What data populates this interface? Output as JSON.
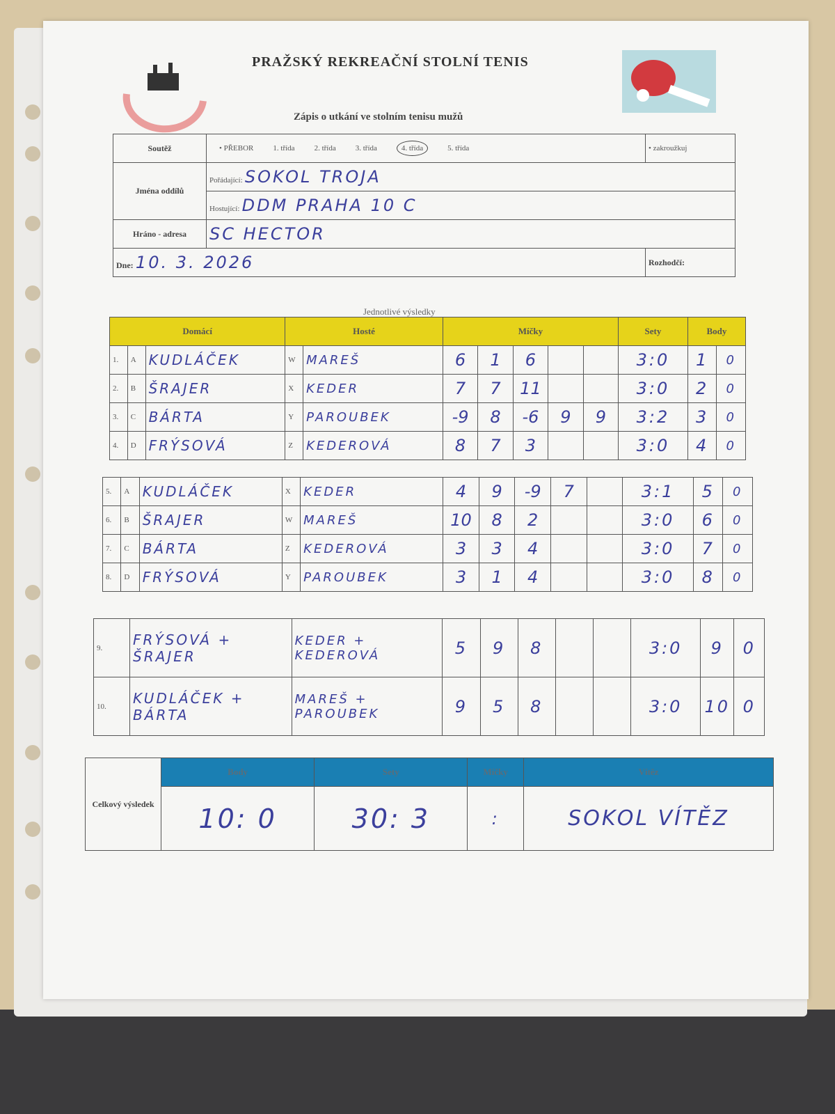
{
  "header": {
    "title": "PRAŽSKÝ REKREAČNÍ STOLNÍ TENIS",
    "subtitle": "Zápis o utkání ve stolním tenisu mužů"
  },
  "info": {
    "soutez_label": "Soutěž",
    "soutez_options": [
      "• PŘEBOR",
      "1. třída",
      "2. třída",
      "3. třída",
      "4. třída",
      "5. třída"
    ],
    "soutez_selected": "4. třída",
    "zakrouzkuj": "• zakroužkuj",
    "jmena_label": "Jména oddílů",
    "poradajici_label": "Pořádající:",
    "poradajici": "SOKOL TROJA",
    "hostujici_label": "Hostující:",
    "hostujici": "DDM PRAHA 10 C",
    "adresa_label": "Hráno - adresa",
    "adresa": "SC HECTOR",
    "dne_label": "Dne:",
    "dne": "10. 3. 2026",
    "rozhodci_label": "Rozhodčí:"
  },
  "results": {
    "caption": "Jednotlivé výsledky",
    "headers": {
      "domaci": "Domácí",
      "hoste": "Hosté",
      "micky": "Míčky",
      "sety": "Sety",
      "body": "Body"
    },
    "rows": [
      {
        "n": "1.",
        "hl": "A",
        "home": "KUDLÁČEK",
        "gl": "W",
        "guest": "MAREŠ",
        "balls": [
          "6",
          "1",
          "6",
          "",
          ""
        ],
        "sets": "3:0",
        "b1": "1",
        "b2": "0"
      },
      {
        "n": "2.",
        "hl": "B",
        "home": "ŠRAJER",
        "gl": "X",
        "guest": "KEDER",
        "balls": [
          "7",
          "7",
          "11",
          "",
          ""
        ],
        "sets": "3:0",
        "b1": "2",
        "b2": "0"
      },
      {
        "n": "3.",
        "hl": "C",
        "home": "BÁRTA",
        "gl": "Y",
        "guest": "PAROUBEK",
        "balls": [
          "-9",
          "8",
          "-6",
          "9",
          "9"
        ],
        "sets": "3:2",
        "b1": "3",
        "b2": "0"
      },
      {
        "n": "4.",
        "hl": "D",
        "home": "FRÝSOVÁ",
        "gl": "Z",
        "guest": "KEDEROVÁ",
        "balls": [
          "8",
          "7",
          "3",
          "",
          ""
        ],
        "sets": "3:0",
        "b1": "4",
        "b2": "0"
      },
      {
        "n": "5.",
        "hl": "A",
        "home": "KUDLÁČEK",
        "gl": "X",
        "guest": "KEDER",
        "balls": [
          "4",
          "9",
          "-9",
          "7",
          ""
        ],
        "sets": "3:1",
        "b1": "5",
        "b2": "0"
      },
      {
        "n": "6.",
        "hl": "B",
        "home": "ŠRAJER",
        "gl": "W",
        "guest": "MAREŠ",
        "balls": [
          "10",
          "8",
          "2",
          "",
          ""
        ],
        "sets": "3:0",
        "b1": "6",
        "b2": "0"
      },
      {
        "n": "7.",
        "hl": "C",
        "home": "BÁRTA",
        "gl": "Z",
        "guest": "KEDEROVÁ",
        "balls": [
          "3",
          "3",
          "4",
          "",
          ""
        ],
        "sets": "3:0",
        "b1": "7",
        "b2": "0"
      },
      {
        "n": "8.",
        "hl": "D",
        "home": "FRÝSOVÁ",
        "gl": "Y",
        "guest": "PAROUBEK",
        "balls": [
          "3",
          "1",
          "4",
          "",
          ""
        ],
        "sets": "3:0",
        "b1": "8",
        "b2": "0"
      }
    ],
    "doubles": [
      {
        "n": "9.",
        "home": "FRÝSOVÁ + ŠRAJER",
        "guest": "KEDER + KEDEROVÁ",
        "balls": [
          "5",
          "9",
          "8",
          "",
          ""
        ],
        "sets": "3:0",
        "b1": "9",
        "b2": "0"
      },
      {
        "n": "10.",
        "home": "KUDLÁČEK + BÁRTA",
        "guest": "MAREŠ + PAROUBEK",
        "balls": [
          "9",
          "5",
          "8",
          "",
          ""
        ],
        "sets": "3:0",
        "b1": "10",
        "b2": "0"
      }
    ]
  },
  "total": {
    "label": "Celkový výsledek",
    "headers": {
      "body": "Body",
      "sety": "Sety",
      "micky": "Míčky",
      "vitez": "Vítěz"
    },
    "body": "10: 0",
    "sety": "30: 3",
    "micky": ":",
    "vitez": "SOKOL VÍTĚZ"
  },
  "colors": {
    "yellow_header": "#e6d31a",
    "blue_header": "#1a7fb3",
    "ink": "#3b3f9c"
  }
}
